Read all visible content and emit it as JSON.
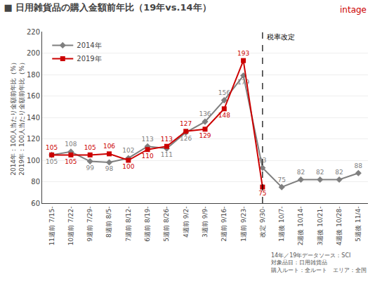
{
  "chart_data": {
    "type": "line",
    "title": "■ 日用雑貨品の購入金額前年比（19年vs.14年）",
    "ylabel": [
      "2014年：100人当たり金額前年比（%）",
      "2019年：100人当たり金額前年比（%）"
    ],
    "categories": [
      "11週前 7/15-",
      "10週前 7/22-",
      "9週前 7/29-",
      "8週前 8/5-",
      "7週前 8/12-",
      "6週前 8/19-",
      "5週前 8/26-",
      "4週前 9/2-",
      "3週前 9/9-",
      "2週前 9/16-",
      "1週前 9/23-",
      "改定 9/30-",
      "1週後 10/7-",
      "2週後 10/14-",
      "3週後 10/21-",
      "4週後 10/28-",
      "5週後 11/4-"
    ],
    "series": [
      {
        "name": "2014年",
        "color": "#7f7f7f",
        "marker": "diamond",
        "values": [
          105,
          108,
          99,
          98,
          102,
          113,
          111,
          126,
          136,
          156,
          179,
          93,
          75,
          82,
          82,
          82,
          88
        ]
      },
      {
        "name": "2019年",
        "color": "#cc0000",
        "marker": "square",
        "values": [
          105,
          105,
          105,
          106,
          100,
          110,
          113,
          127,
          129,
          148,
          193,
          75,
          null,
          null,
          null,
          null,
          null
        ]
      }
    ],
    "ylim": [
      60,
      220
    ],
    "yticks": [
      60,
      80,
      100,
      120,
      140,
      160,
      180,
      200,
      220
    ],
    "grid": true,
    "legend": "upper left",
    "data_labels": true,
    "annotations": [
      {
        "text": "税率改定",
        "x": "改定 9/30-",
        "line_style": "dashed"
      }
    ],
    "logo": {
      "text": "intage",
      "color": "#cc0000"
    },
    "footnote": "14年／19年データソース：SCI\n対象品目：日用雑貨品\n購入ルート：全ルート　エリア：全国"
  }
}
